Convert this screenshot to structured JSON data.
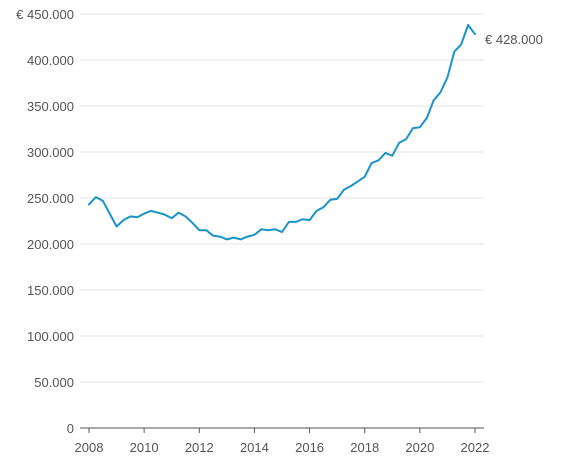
{
  "chart_data": {
    "type": "line",
    "title": "",
    "xlabel": "",
    "ylabel": "",
    "xlim": [
      2008,
      2022
    ],
    "ylim": [
      0,
      450000
    ],
    "y_ticks": [
      0,
      50000,
      100000,
      150000,
      200000,
      250000,
      300000,
      350000,
      400000,
      450000
    ],
    "y_tick_labels": [
      "0",
      "50.000",
      "100.000",
      "150.000",
      "200.000",
      "250.000",
      "300.000",
      "350.000",
      "400.000",
      "€ 450.000"
    ],
    "x_ticks": [
      2008,
      2010,
      2012,
      2014,
      2016,
      2018,
      2020,
      2022
    ],
    "x_tick_labels": [
      "2008",
      "2010",
      "2012",
      "2014",
      "2016",
      "2018",
      "2020",
      "2022"
    ],
    "grid": true,
    "line_color": "#1a93c8",
    "end_label": "€ 428.000",
    "series": [
      {
        "x": [
          2008.0,
          2008.25,
          2008.5,
          2008.75,
          2009.0,
          2009.25,
          2009.5,
          2009.75,
          2010.0,
          2010.25,
          2010.5,
          2010.75,
          2011.0,
          2011.25,
          2011.5,
          2011.75,
          2012.0,
          2012.25,
          2012.5,
          2012.75,
          2013.0,
          2013.25,
          2013.5,
          2013.75,
          2014.0,
          2014.25,
          2014.5,
          2014.75,
          2015.0,
          2015.25,
          2015.5,
          2015.75,
          2016.0,
          2016.25,
          2016.5,
          2016.75,
          2017.0,
          2017.25,
          2017.5,
          2017.75,
          2018.0,
          2018.25,
          2018.5,
          2018.75,
          2019.0,
          2019.25,
          2019.5,
          2019.75,
          2020.0,
          2020.25,
          2020.5,
          2020.75,
          2021.0,
          2021.25,
          2021.5,
          2021.75,
          2022.0
        ],
        "y": [
          243000,
          251000,
          247000,
          233000,
          219000,
          226000,
          230000,
          229000,
          233000,
          236000,
          234000,
          232000,
          228000,
          234000,
          230000,
          223000,
          215000,
          215000,
          209000,
          208000,
          205000,
          207000,
          205000,
          208000,
          210000,
          216000,
          215000,
          216000,
          213000,
          224000,
          224000,
          227000,
          226000,
          236000,
          240000,
          248000,
          249000,
          259000,
          263000,
          268000,
          273000,
          288000,
          291000,
          299000,
          296000,
          310000,
          314000,
          326000,
          327000,
          337000,
          356000,
          365000,
          381000,
          409000,
          417000,
          438000,
          428000
        ]
      }
    ]
  }
}
